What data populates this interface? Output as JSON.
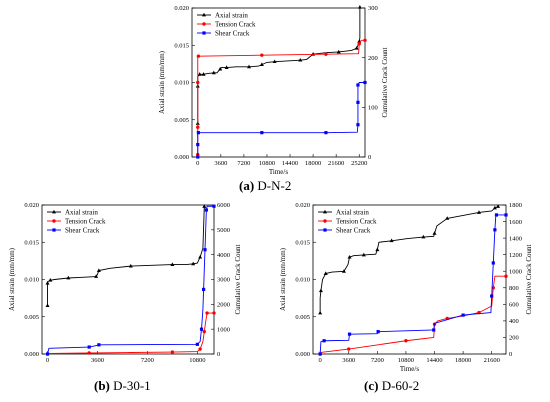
{
  "captions": [
    {
      "tag": "(a)",
      "text": "D-N-2"
    },
    {
      "tag": "(b)",
      "text": "D-30-1"
    },
    {
      "tag": "(c)",
      "text": "D-60-2"
    }
  ],
  "chart_data": [
    {
      "type": "line",
      "xlabel": "Time/s",
      "ylabel": "Axial strain (mm/mm)",
      "y2label": "Cumulative Crack Count",
      "xticks": [
        0,
        3600,
        7200,
        10800,
        14400,
        18000,
        21600,
        25200
      ],
      "xlim": [
        -900,
        26100
      ],
      "ylim": [
        0,
        0.02
      ],
      "yticks": [
        "0.000",
        "0.005",
        "0.010",
        "0.015",
        "0.020"
      ],
      "y2lim": [
        0,
        300
      ],
      "y2ticks": [
        "0",
        "100",
        "200",
        "300"
      ],
      "legend": "top-left",
      "series": [
        {
          "name": "Axial strain",
          "axis": "left",
          "color": "#000000",
          "marker": "triangle",
          "x": [
            0,
            0,
            0,
            0,
            300,
            500,
            900,
            1500,
            2500,
            3000,
            3500,
            3700,
            4500,
            6000,
            8000,
            9500,
            10000,
            10800,
            12000,
            14000,
            16000,
            17000,
            18000,
            20000,
            22000,
            24000,
            24800,
            25000,
            25200,
            25300,
            25300
          ],
          "y": [
            0.0045,
            0.007,
            0.0095,
            0.0108,
            0.0111,
            0.0111,
            0.0111,
            0.0112,
            0.0113,
            0.0113,
            0.0118,
            0.012,
            0.012,
            0.0121,
            0.0121,
            0.0122,
            0.0124,
            0.0127,
            0.0128,
            0.0129,
            0.013,
            0.0131,
            0.0138,
            0.014,
            0.0141,
            0.0143,
            0.0146,
            0.015,
            0.0155,
            0.016,
            0.0201
          ]
        },
        {
          "name": "Tension Crack",
          "axis": "right",
          "color": "#ff0000",
          "marker": "circle",
          "x": [
            0,
            0,
            0,
            0,
            0,
            0,
            100,
            5000,
            10000,
            15000,
            20000,
            25100,
            25200,
            25500,
            26100
          ],
          "y": [
            5,
            25,
            60,
            100,
            150,
            200,
            203,
            204,
            205,
            206,
            207,
            208,
            228,
            235,
            235
          ]
        },
        {
          "name": "Shear Crack",
          "axis": "right",
          "color": "#0000ff",
          "marker": "square",
          "x": [
            0,
            0,
            0,
            0,
            100,
            5000,
            10000,
            15000,
            20000,
            24900,
            25000,
            25000,
            25000,
            25000,
            25000,
            25200,
            26100
          ],
          "y": [
            0,
            10,
            25,
            48,
            49,
            49,
            49,
            49,
            49,
            50,
            65,
            90,
            110,
            130,
            145,
            150,
            150
          ]
        }
      ]
    },
    {
      "type": "line",
      "xlabel": "",
      "ylabel": "Axial strain (mm/mm)",
      "y2label": "Cumulative Crack Count",
      "xticks": [
        0,
        3600,
        7200,
        10800
      ],
      "xlim": [
        -400,
        12000
      ],
      "ylim": [
        0,
        0.02
      ],
      "yticks": [
        "0.000",
        "0.005",
        "0.010",
        "0.015",
        "0.020"
      ],
      "y2lim": [
        0,
        6000
      ],
      "y2ticks": [
        "0",
        "1000",
        "2000",
        "3000",
        "4000",
        "5000",
        "6000"
      ],
      "legend": "top-left",
      "series": [
        {
          "name": "Axial strain",
          "axis": "left",
          "color": "#000000",
          "marker": "triangle",
          "x": [
            0,
            0,
            0,
            0,
            200,
            500,
            1500,
            2500,
            3500,
            3600,
            3700,
            4500,
            6000,
            7500,
            9000,
            10000,
            10500,
            10800,
            11000,
            11200,
            11300
          ],
          "y": [
            0.0065,
            0.008,
            0.0095,
            0.0097,
            0.0099,
            0.01,
            0.0102,
            0.0103,
            0.0104,
            0.0107,
            0.0112,
            0.0115,
            0.0118,
            0.0119,
            0.012,
            0.012,
            0.0121,
            0.0122,
            0.013,
            0.0142,
            0.0198
          ]
        },
        {
          "name": "Tension Crack",
          "axis": "right",
          "color": "#ff0000",
          "marker": "circle",
          "x": [
            0,
            100,
            3000,
            6000,
            9000,
            10800,
            11000,
            11200,
            11300,
            11400,
            11500,
            12000
          ],
          "y": [
            0,
            20,
            40,
            60,
            80,
            100,
            200,
            500,
            900,
            1300,
            1650,
            1650
          ]
        },
        {
          "name": "Shear Crack",
          "axis": "right",
          "color": "#0000ff",
          "marker": "square",
          "x": [
            0,
            100,
            3000,
            3600,
            3700,
            7000,
            10800,
            11000,
            11100,
            11200,
            11250,
            11300,
            11350,
            11400,
            11450,
            11500,
            12000
          ],
          "y": [
            0,
            230,
            280,
            350,
            370,
            380,
            390,
            500,
            1000,
            1800,
            2600,
            3400,
            4200,
            5000,
            5800,
            5950,
            5950
          ]
        }
      ]
    },
    {
      "type": "line",
      "xlabel": "Time/s",
      "ylabel": "Axial strain (mm/mm)",
      "y2label": "Cumulative Crack Count",
      "xticks": [
        0,
        3600,
        7200,
        10800,
        14400,
        18000,
        21600
      ],
      "xlim": [
        -900,
        23400
      ],
      "ylim": [
        0,
        0.02
      ],
      "yticks": [
        "0.000",
        "0.005",
        "0.010",
        "0.015",
        "0.020"
      ],
      "y2lim": [
        0,
        1800
      ],
      "y2ticks": [
        "0",
        "200",
        "400",
        "600",
        "800",
        "1000",
        "1200",
        "1400",
        "1600",
        "1800"
      ],
      "legend": "top-left",
      "series": [
        {
          "name": "Axial strain",
          "axis": "left",
          "color": "#000000",
          "marker": "triangle",
          "x": [
            0,
            0,
            100,
            300,
            700,
            1500,
            3000,
            3500,
            3700,
            4200,
            5500,
            7000,
            7200,
            7400,
            9000,
            11000,
            13000,
            14300,
            14400,
            14700,
            16000,
            18000,
            20000,
            21600,
            22000,
            22400
          ],
          "y": [
            0.0055,
            0.0075,
            0.0085,
            0.01,
            0.0108,
            0.011,
            0.0111,
            0.012,
            0.013,
            0.0132,
            0.0133,
            0.0134,
            0.014,
            0.015,
            0.0152,
            0.0155,
            0.0157,
            0.0158,
            0.0162,
            0.0172,
            0.0182,
            0.0186,
            0.019,
            0.0192,
            0.0196,
            0.0198
          ]
        },
        {
          "name": "Tension Crack",
          "axis": "right",
          "color": "#ff0000",
          "marker": "circle",
          "x": [
            0,
            200,
            3600,
            7200,
            10800,
            14300,
            14400,
            14800,
            16000,
            18000,
            20000,
            21600,
            21800,
            22000,
            23400
          ],
          "y": [
            0,
            20,
            60,
            110,
            160,
            200,
            360,
            400,
            430,
            460,
            500,
            580,
            800,
            940,
            940
          ]
        },
        {
          "name": "Shear Crack",
          "axis": "right",
          "color": "#0000ff",
          "marker": "square",
          "x": [
            0,
            100,
            500,
            3600,
            3700,
            7200,
            7300,
            10800,
            14300,
            14400,
            18000,
            21500,
            21600,
            21700,
            21800,
            21900,
            22000,
            22100,
            22200,
            23400
          ],
          "y": [
            0,
            150,
            160,
            165,
            240,
            245,
            270,
            280,
            290,
            370,
            470,
            500,
            700,
            900,
            1100,
            1300,
            1500,
            1650,
            1680,
            1680
          ]
        }
      ]
    }
  ]
}
